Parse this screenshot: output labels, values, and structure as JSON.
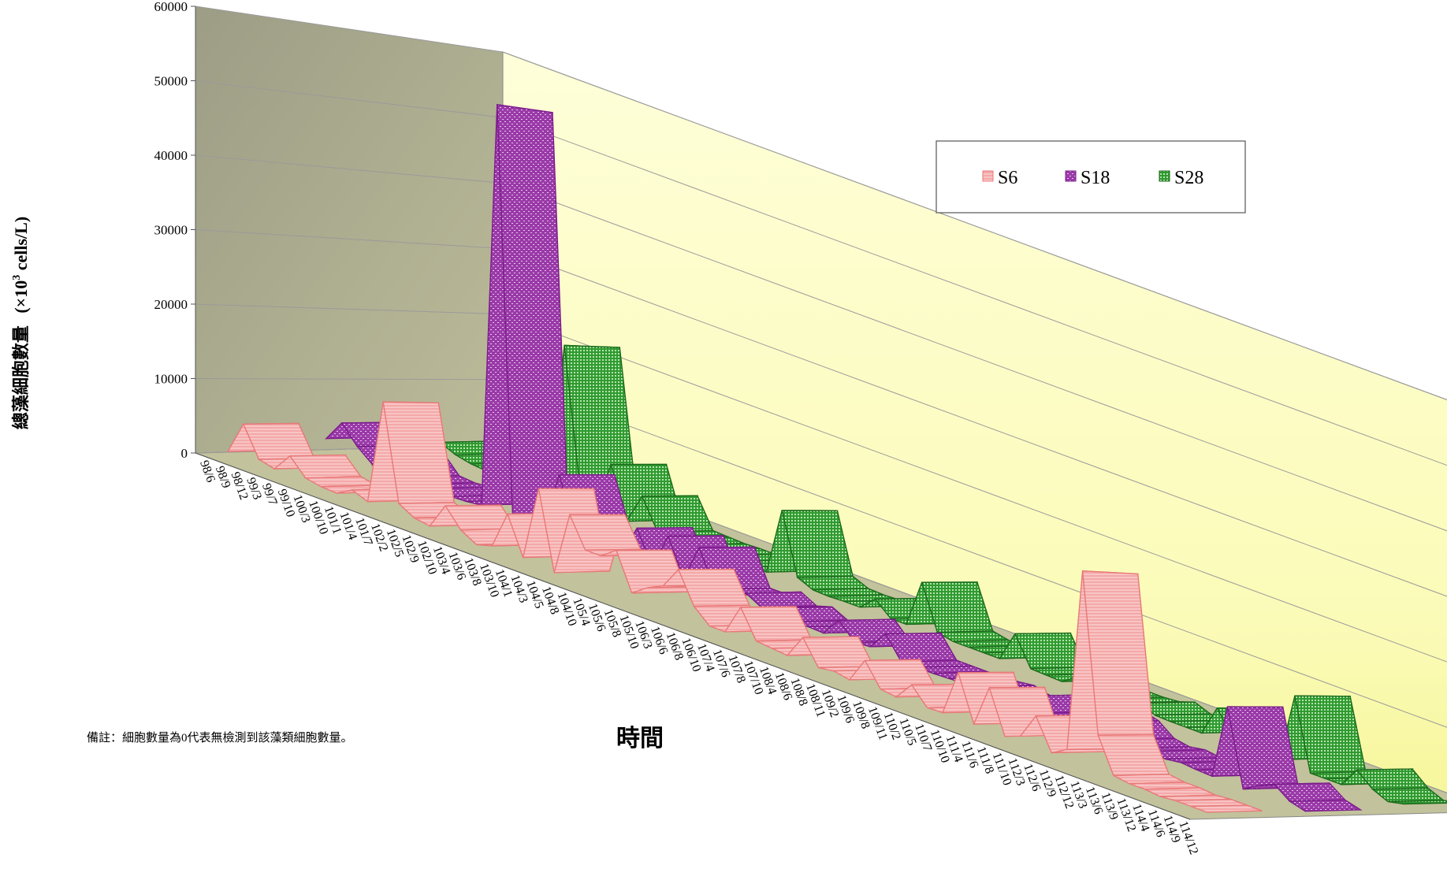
{
  "chart_data": {
    "type": "line",
    "style": "3d-ribbon",
    "title": "",
    "xlabel": "時間",
    "ylabel": "總藻細胞數量 (×10³ cells/L)",
    "ylabel_main": "總藻細胞數量",
    "ylabel_unit_pre": "(×10",
    "ylabel_unit_sup": "3",
    "ylabel_unit_post": " cells/L)",
    "ylim": [
      0,
      60000
    ],
    "yticks": [
      "0",
      "10000",
      "20000",
      "30000",
      "40000",
      "50000",
      "60000"
    ],
    "grid": true,
    "legend_position": "top-right",
    "note": "備註：細胞數量為0代表無檢測到該藻類細胞數量。",
    "categories": [
      "98/6",
      "98/9",
      "98/12",
      "99/3",
      "99/7",
      "99/10",
      "100/3",
      "100/10",
      "101/1",
      "101/4",
      "101/7",
      "102/2",
      "102/5",
      "102/9",
      "102/10",
      "103/4",
      "103/6",
      "103/8",
      "103/10",
      "104/1",
      "104/3",
      "104/5",
      "104/8",
      "104/10",
      "105/4",
      "105/6",
      "105/8",
      "105/10",
      "106/3",
      "106/6",
      "106/8",
      "106/10",
      "107/4",
      "107/6",
      "107/8",
      "107/10",
      "108/4",
      "108/6",
      "108/8",
      "108/11",
      "109/2",
      "109/6",
      "109/8",
      "109/11",
      "110/2",
      "110/5",
      "110/7",
      "110/10",
      "111/4",
      "111/6",
      "111/8",
      "111/10",
      "112/3",
      "112/6",
      "112/9",
      "112/12",
      "113/3",
      "113/6",
      "113/9",
      "113/12",
      "114/4",
      "114/6",
      "114/9",
      "114/12"
    ],
    "series": [
      {
        "name": "S6",
        "color": "#f2a0a0",
        "edge": "#e87878",
        "values": [
          500,
          5000,
          1000,
          500,
          3000,
          800,
          400,
          300,
          1500,
          700,
          15000,
          2000,
          800,
          500,
          4000,
          1500,
          300,
          900,
          6000,
          900,
          11000,
          400,
          9000,
          5000,
          5000,
          6500,
          1500,
          3000,
          4000,
          7000,
          2800,
          900,
          900,
          5000,
          1200,
          1000,
          800,
          4000,
          700,
          1000,
          600,
          4000,
          900,
          600,
          3000,
          700,
          800,
          7000,
          800,
          6500,
          700,
          1500,
          5000,
          800,
          2000,
          27000,
          5500,
          800,
          500,
          500,
          300,
          500,
          500,
          500
        ]
      },
      {
        "name": "S18",
        "color": "#a040b0",
        "edge": "#7a1a8a",
        "values": [
          2000,
          5000,
          2500,
          700,
          3000,
          600,
          400,
          600,
          300,
          400,
          700,
          58000,
          900,
          300,
          900,
          9000,
          1800,
          300,
          1500,
          900,
          5500,
          800,
          6000,
          800,
          6000,
          900,
          900,
          2000,
          800,
          1500,
          400,
          500,
          400,
          3000,
          700,
          900,
          3500,
          400,
          400,
          400,
          500,
          600,
          900,
          300,
          700,
          2000,
          400,
          300,
          800,
          3000,
          2400,
          700,
          300,
          700,
          400,
          700,
          500,
          400,
          11000,
          200,
          1500,
          2500,
          900,
          300
        ]
      },
      {
        "name": "S28",
        "color": "#2fa030",
        "edge": "#1a6a1a",
        "values": [
          1000,
          2000,
          1000,
          500,
          300,
          400,
          600,
          300,
          400,
          23000,
          3000,
          300,
          8000,
          500,
          5000,
          600,
          500,
          400,
          500,
          500,
          500,
          500,
          600,
          10500,
          1500,
          500,
          400,
          500,
          500,
          2500,
          500,
          500,
          7500,
          1000,
          500,
          500,
          500,
          500,
          5000,
          700,
          600,
          500,
          2000,
          500,
          500,
          700,
          1500,
          600,
          500,
          500,
          500,
          5000,
          1500,
          600,
          500,
          800,
          11000,
          500,
          500,
          500,
          3500,
          1500,
          500,
          1000
        ]
      }
    ]
  }
}
